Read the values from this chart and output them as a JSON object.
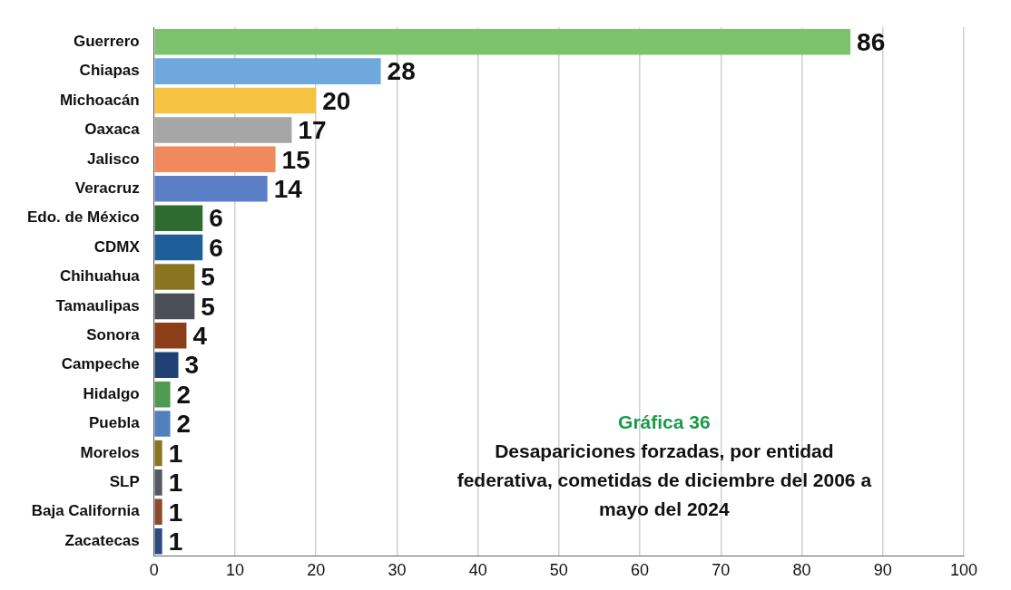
{
  "chart_data": {
    "type": "bar",
    "orientation": "horizontal",
    "title": "Gráfica 36",
    "subtitle": "Desapariciones forzadas, por entidad federativa, cometidas de diciembre del 2006 a mayo del 2024",
    "categories": [
      "Guerrero",
      "Chiapas",
      "Michoacán",
      "Oaxaca",
      "Jalisco",
      "Veracruz",
      "Edo. de México",
      "CDMX",
      "Chihuahua",
      "Tamaulipas",
      "Sonora",
      "Campeche",
      "Hidalgo",
      "Puebla",
      "Morelos",
      "SLP",
      "Baja California",
      "Zacatecas"
    ],
    "values": [
      86,
      28,
      20,
      17,
      15,
      14,
      6,
      6,
      5,
      5,
      4,
      3,
      2,
      2,
      1,
      1,
      1,
      1
    ],
    "colors": [
      "#7dc36e",
      "#6fa8dc",
      "#f5c242",
      "#a6a6a6",
      "#f08a5d",
      "#5b7fc7",
      "#2e6b2e",
      "#1f5f99",
      "#8a7420",
      "#4a4f55",
      "#8b3e17",
      "#1f3f75",
      "#4f9a4f",
      "#4f81bd",
      "#8a7420",
      "#555a60",
      "#8b4a2a",
      "#2a4a80"
    ],
    "xlim": [
      0,
      100
    ],
    "xticks": [
      0,
      10,
      20,
      30,
      40,
      50,
      60,
      70,
      80,
      90,
      100
    ],
    "grid": "x",
    "legend": false,
    "data_labels": true
  }
}
